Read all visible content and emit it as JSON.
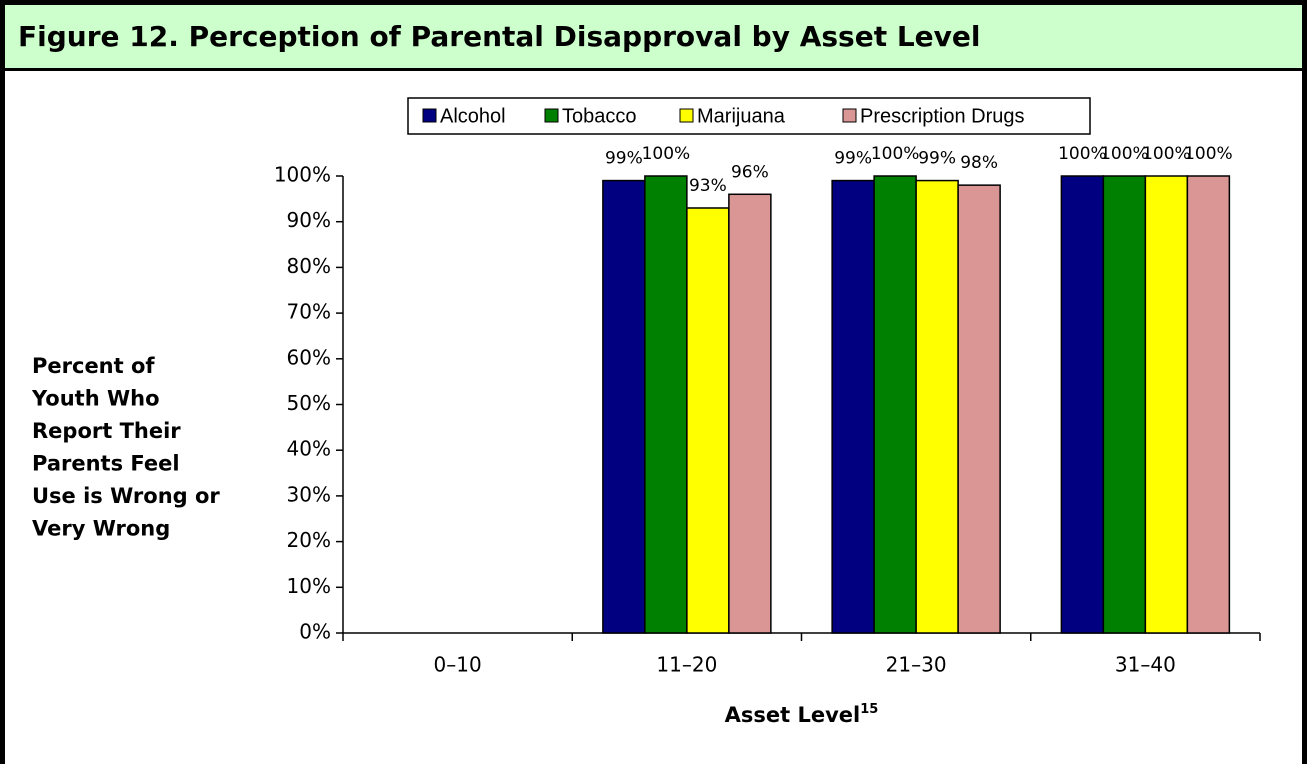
{
  "chart_data": {
    "type": "bar",
    "title": "Figure 12.  Perception of Parental Disapproval by Asset Level",
    "ylabel_lines": [
      "Percent of",
      "Youth Who",
      "Report Their",
      "Parents Feel",
      "Use is Wrong or",
      "Very Wrong"
    ],
    "xlabel": "Asset Level",
    "xlabel_footnote": "15",
    "categories": [
      "0–10",
      "11–20",
      "21–30",
      "31–40"
    ],
    "series": [
      {
        "name": "Alcohol",
        "color": "#000080",
        "values": [
          null,
          99,
          99,
          100
        ],
        "value_labels": [
          null,
          "99%",
          "99%",
          "100%"
        ]
      },
      {
        "name": "Tobacco",
        "color": "#008000",
        "values": [
          null,
          100,
          100,
          100
        ],
        "value_labels": [
          null,
          "100%",
          "100%",
          "100%"
        ]
      },
      {
        "name": "Marijuana",
        "color": "#ffff00",
        "values": [
          null,
          93,
          99,
          100
        ],
        "value_labels": [
          null,
          "93%",
          "99%",
          "100%"
        ]
      },
      {
        "name": "Prescription Drugs",
        "color": "#d99694",
        "values": [
          null,
          96,
          98,
          100
        ],
        "value_labels": [
          null,
          "96%",
          "98%",
          "100%"
        ]
      }
    ],
    "ylim": [
      0,
      100
    ],
    "yticks": [
      {
        "value": 0,
        "label": "0%"
      },
      {
        "value": 10,
        "label": "10%"
      },
      {
        "value": 20,
        "label": "20%"
      },
      {
        "value": 30,
        "label": "30%"
      },
      {
        "value": 40,
        "label": "40%"
      },
      {
        "value": 50,
        "label": "50%"
      },
      {
        "value": 60,
        "label": "60%"
      },
      {
        "value": 70,
        "label": "70%"
      },
      {
        "value": 80,
        "label": "80%"
      },
      {
        "value": 90,
        "label": "90%"
      },
      {
        "value": 100,
        "label": "100%"
      }
    ],
    "legend": "top",
    "grid": false
  }
}
